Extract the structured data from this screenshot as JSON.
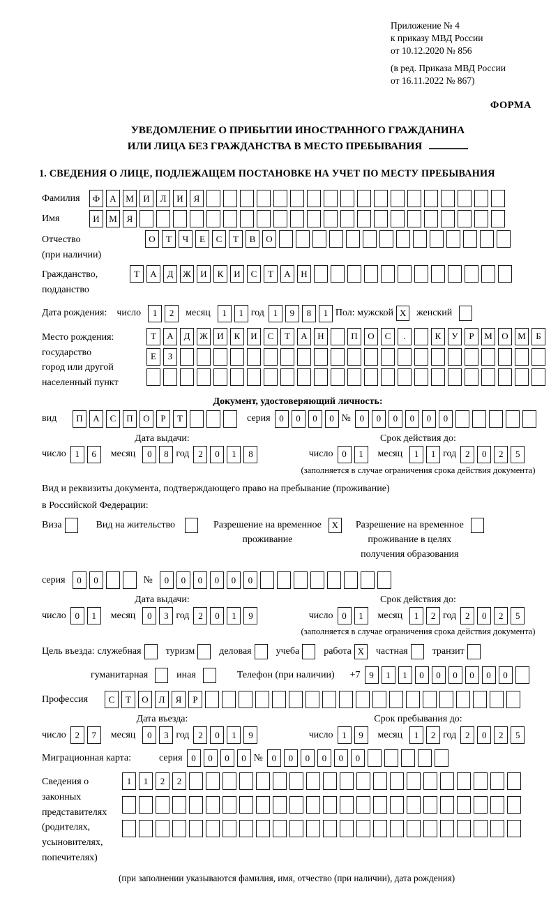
{
  "header": {
    "appendix": [
      "Приложение № 4",
      "к приказу МВД России",
      "от 10.12.2020 № 856"
    ],
    "amendment": [
      "(в ред. Приказа МВД России",
      "от 16.11.2022 № 867)"
    ],
    "form_word": "ФОРМА"
  },
  "title": {
    "line1": "УВЕДОМЛЕНИЕ О ПРИБЫТИИ ИНОСТРАННОГО ГРАЖДАНИНА",
    "line2": "ИЛИ ЛИЦА БЕЗ ГРАЖДАНСТВА В МЕСТО ПРЕБЫВАНИЯ"
  },
  "section1": {
    "heading": "1. СВЕДЕНИЯ О ЛИЦЕ, ПОДЛЕЖАЩЕМ ПОСТАНОВКЕ НА УЧЕТ ПО МЕСТУ ПРЕБЫВАНИЯ"
  },
  "labels": {
    "surname": "Фамилия",
    "name": "Имя",
    "patronymic_1": "Отчество",
    "patronymic_2": "(при наличии)",
    "citizenship_1": "Гражданство,",
    "citizenship_2": "подданство",
    "birth_date": "Дата рождения:",
    "day": "число",
    "month": "месяц",
    "year": "год",
    "sex_male": "Пол: мужской",
    "sex_female": "женский",
    "birth_place_1": "Место рождения:",
    "birth_place_2": "государство",
    "birth_place_3": "город или другой",
    "birth_place_4": "населенный пункт",
    "identity_doc_heading": "Документ, удостоверяющий личность:",
    "doc_type": "вид",
    "series": "серия",
    "number": "№",
    "issue_date": "Дата выдачи:",
    "valid_until": "Срок действия до:",
    "valid_note": "(заполняется в случае ограничения срока действия документа)",
    "residence_line1": "Вид и реквизиты документа, подтверждающего право на пребывание (проживание)",
    "residence_line2": "в Российской Федерации:",
    "entry_purpose": "Цель въезда:",
    "phone": "Телефон (при наличии)",
    "phone_prefix": "+7",
    "profession": "Профессия",
    "entry_date": "Дата въезда:",
    "stay_until": "Срок пребывания до:",
    "migration_card": "Миграционная карта:",
    "rep_1": "Сведения о",
    "rep_2": "законных",
    "rep_3": "представителях",
    "rep_4": "(родителях,",
    "rep_5": "усыновителях,",
    "rep_6": "попечителях)",
    "rep_note": "(при заполнении указываются фамилия, имя, отчество (при наличии), дата рождения)"
  },
  "fields": {
    "surname": {
      "value": "ФАМИЛИЯ",
      "count": 25
    },
    "name": {
      "value": "ИМЯ",
      "count": 25
    },
    "patronymic": {
      "value": "ОТЧЕСТВО",
      "count": 22
    },
    "citizenship": {
      "value": "ТАДЖИКИСТАН",
      "count": 23
    },
    "birth_day": {
      "value": "12",
      "count": 2
    },
    "birth_month": {
      "value": "11",
      "count": 2
    },
    "birth_year": {
      "value": "1981",
      "count": 4
    },
    "sex_male_checked": true,
    "sex_female_checked": false,
    "birth_place_row1": {
      "value": "ТАДЖИКИСТАН ПОС. КУРМОМБ",
      "count": 24
    },
    "birth_place_row2": {
      "value": "ЕЗ",
      "count": 24
    },
    "birth_place_row3": {
      "value": "",
      "count": 24
    },
    "id_type": {
      "value": "ПАСПОРТ",
      "count": 10
    },
    "id_series": {
      "value": "0000",
      "count": 4
    },
    "id_number": {
      "value": "000000",
      "count": 11
    },
    "id_issue_day": {
      "value": "16",
      "count": 2
    },
    "id_issue_month": {
      "value": "08",
      "count": 2
    },
    "id_issue_year": {
      "value": "2018",
      "count": 4
    },
    "id_valid_day": {
      "value": "01",
      "count": 2
    },
    "id_valid_month": {
      "value": "11",
      "count": 2
    },
    "id_valid_year": {
      "value": "2025",
      "count": 4
    },
    "res_series": {
      "value": "00",
      "count": 4
    },
    "res_number": {
      "value": "000000",
      "count": 14
    },
    "res_issue_day": {
      "value": "01",
      "count": 2
    },
    "res_issue_month": {
      "value": "03",
      "count": 2
    },
    "res_issue_year": {
      "value": "2019",
      "count": 4
    },
    "res_valid_day": {
      "value": "01",
      "count": 2
    },
    "res_valid_month": {
      "value": "12",
      "count": 2
    },
    "res_valid_year": {
      "value": "2025",
      "count": 4
    },
    "phone": {
      "value": "911000000",
      "count": 10
    },
    "profession": {
      "value": "СТОЛЯР",
      "count": 25
    },
    "entry_day": {
      "value": "27",
      "count": 2
    },
    "entry_month": {
      "value": "03",
      "count": 2
    },
    "entry_year": {
      "value": "2019",
      "count": 4
    },
    "stay_day": {
      "value": "19",
      "count": 2
    },
    "stay_month": {
      "value": "12",
      "count": 2
    },
    "stay_year": {
      "value": "2025",
      "count": 4
    },
    "mig_series": {
      "value": "0000",
      "count": 4
    },
    "mig_number": {
      "value": "000000",
      "count": 11
    },
    "rep_row1": {
      "value": "1122",
      "count": 24
    },
    "rep_row2": {
      "value": "",
      "count": 24
    },
    "rep_row3": {
      "value": "",
      "count": 24
    }
  },
  "residence_options": [
    {
      "lines": [
        "Виза"
      ],
      "checked": false
    },
    {
      "lines": [
        "Вид на жительство"
      ],
      "checked": false
    },
    {
      "lines": [
        "Разрешение на временное",
        "проживание"
      ],
      "checked": true
    },
    {
      "lines": [
        "Разрешение на временное",
        "проживание в целях",
        "получения образования"
      ],
      "checked": false
    }
  ],
  "purpose_row1": [
    {
      "label": "служебная",
      "checked": false
    },
    {
      "label": "туризм",
      "checked": false
    },
    {
      "label": "деловая",
      "checked": false
    },
    {
      "label": "учеба",
      "checked": false
    },
    {
      "label": "работа",
      "checked": true
    },
    {
      "label": "частная",
      "checked": false
    },
    {
      "label": "транзит",
      "checked": false
    }
  ],
  "purpose_row2": [
    {
      "label": "гуманитарная",
      "checked": false
    },
    {
      "label": "иная",
      "checked": false
    }
  ]
}
